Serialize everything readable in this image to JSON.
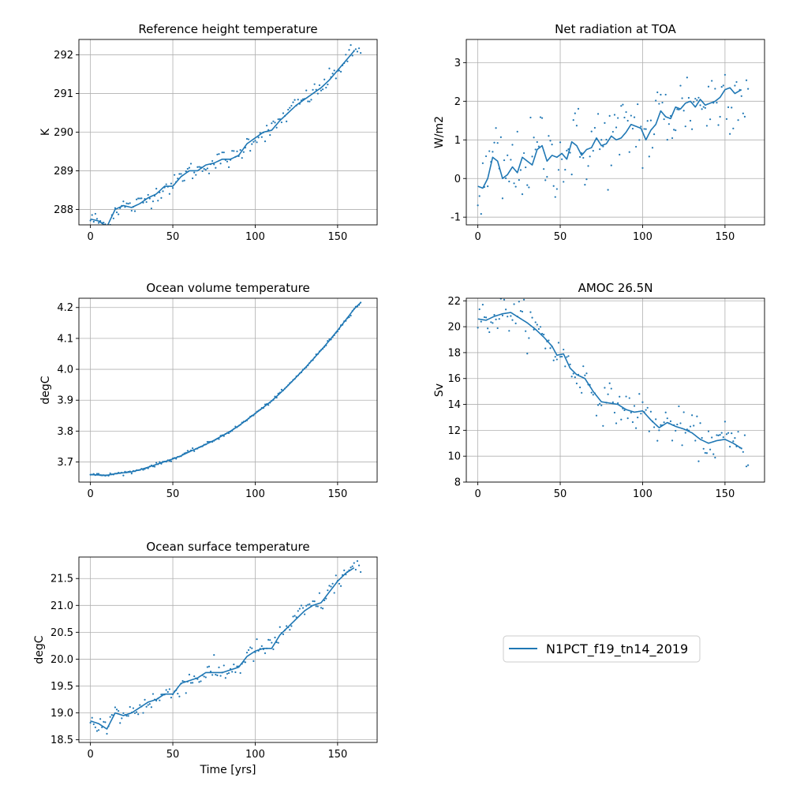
{
  "figure": {
    "legend": {
      "label": "N1PCT_f19_tn14_2019",
      "color": "#1f77b4",
      "placement": "center"
    },
    "xlabel": "Time [yrs]",
    "xlim": [
      -7,
      174
    ],
    "xticks": [
      0,
      50,
      100,
      150
    ],
    "grid": true
  },
  "chart_data": [
    {
      "type": "line",
      "title": "Reference height temperature",
      "ylabel": "K",
      "ylim": [
        287.6,
        292.4
      ],
      "yticks": [
        288,
        289,
        290,
        291,
        292
      ],
      "series": [
        {
          "smoothed": [
            [
              0,
              287.75
            ],
            [
              5,
              287.7
            ],
            [
              10,
              287.55
            ],
            [
              15,
              288.0
            ],
            [
              20,
              288.1
            ],
            [
              25,
              288.05
            ],
            [
              30,
              288.15
            ],
            [
              35,
              288.3
            ],
            [
              40,
              288.4
            ],
            [
              45,
              288.6
            ],
            [
              50,
              288.6
            ],
            [
              55,
              288.85
            ],
            [
              60,
              289.0
            ],
            [
              65,
              289.0
            ],
            [
              70,
              289.15
            ],
            [
              75,
              289.2
            ],
            [
              80,
              289.3
            ],
            [
              85,
              289.3
            ],
            [
              90,
              289.4
            ],
            [
              95,
              289.7
            ],
            [
              100,
              289.85
            ],
            [
              105,
              290.0
            ],
            [
              110,
              290.05
            ],
            [
              115,
              290.3
            ],
            [
              120,
              290.5
            ],
            [
              125,
              290.7
            ],
            [
              130,
              290.85
            ],
            [
              135,
              291.0
            ],
            [
              140,
              291.15
            ],
            [
              145,
              291.35
            ],
            [
              150,
              291.6
            ],
            [
              155,
              291.85
            ],
            [
              160,
              292.1
            ]
          ],
          "noise": 0.12
        }
      ]
    },
    {
      "type": "line",
      "title": "Net radiation at TOA",
      "ylabel": "W/m2",
      "ylim": [
        -1.2,
        3.6
      ],
      "yticks": [
        -1,
        0,
        1,
        2,
        3
      ],
      "series": [
        {
          "smoothed": [
            [
              0,
              -0.2
            ],
            [
              3,
              -0.25
            ],
            [
              6,
              0.0
            ],
            [
              9,
              0.55
            ],
            [
              12,
              0.45
            ],
            [
              15,
              0.0
            ],
            [
              18,
              0.1
            ],
            [
              21,
              0.3
            ],
            [
              24,
              0.15
            ],
            [
              27,
              0.55
            ],
            [
              30,
              0.45
            ],
            [
              33,
              0.35
            ],
            [
              36,
              0.75
            ],
            [
              39,
              0.85
            ],
            [
              42,
              0.45
            ],
            [
              45,
              0.6
            ],
            [
              48,
              0.55
            ],
            [
              51,
              0.65
            ],
            [
              54,
              0.5
            ],
            [
              57,
              0.95
            ],
            [
              60,
              0.85
            ],
            [
              63,
              0.6
            ],
            [
              66,
              0.75
            ],
            [
              69,
              0.8
            ],
            [
              72,
              1.05
            ],
            [
              75,
              0.85
            ],
            [
              78,
              0.9
            ],
            [
              81,
              1.1
            ],
            [
              84,
              1.0
            ],
            [
              87,
              1.05
            ],
            [
              90,
              1.2
            ],
            [
              93,
              1.4
            ],
            [
              96,
              1.35
            ],
            [
              99,
              1.3
            ],
            [
              102,
              1.0
            ],
            [
              105,
              1.25
            ],
            [
              108,
              1.4
            ],
            [
              111,
              1.75
            ],
            [
              114,
              1.6
            ],
            [
              117,
              1.55
            ],
            [
              120,
              1.85
            ],
            [
              123,
              1.8
            ],
            [
              126,
              1.95
            ],
            [
              129,
              2.0
            ],
            [
              132,
              1.85
            ],
            [
              135,
              2.05
            ],
            [
              138,
              1.9
            ],
            [
              141,
              1.95
            ],
            [
              144,
              2.0
            ],
            [
              147,
              2.1
            ],
            [
              150,
              2.3
            ],
            [
              153,
              2.35
            ],
            [
              156,
              2.2
            ],
            [
              160,
              2.3
            ]
          ],
          "noise": 0.55
        }
      ]
    },
    {
      "type": "line",
      "title": "Ocean volume temperature",
      "ylabel": "degC",
      "ylim": [
        3.635,
        4.23
      ],
      "yticks": [
        3.7,
        3.8,
        3.9,
        4.0,
        4.1,
        4.2
      ],
      "series": [
        {
          "smoothed": [
            [
              0,
              3.659
            ],
            [
              5,
              3.658
            ],
            [
              10,
              3.657
            ],
            [
              15,
              3.662
            ],
            [
              20,
              3.665
            ],
            [
              25,
              3.668
            ],
            [
              30,
              3.675
            ],
            [
              35,
              3.683
            ],
            [
              40,
              3.692
            ],
            [
              45,
              3.701
            ],
            [
              50,
              3.71
            ],
            [
              55,
              3.72
            ],
            [
              60,
              3.733
            ],
            [
              65,
              3.745
            ],
            [
              70,
              3.757
            ],
            [
              75,
              3.77
            ],
            [
              80,
              3.785
            ],
            [
              85,
              3.8
            ],
            [
              90,
              3.817
            ],
            [
              95,
              3.837
            ],
            [
              100,
              3.857
            ],
            [
              105,
              3.877
            ],
            [
              110,
              3.898
            ],
            [
              115,
              3.922
            ],
            [
              120,
              3.948
            ],
            [
              125,
              3.975
            ],
            [
              130,
              4.003
            ],
            [
              135,
              4.032
            ],
            [
              140,
              4.062
            ],
            [
              145,
              4.093
            ],
            [
              150,
              4.126
            ],
            [
              155,
              4.16
            ],
            [
              160,
              4.195
            ],
            [
              164,
              4.216
            ]
          ],
          "noise": 0.0025
        }
      ]
    },
    {
      "type": "line",
      "title": "AMOC 26.5N",
      "ylabel": "Sv",
      "ylim": [
        8.0,
        22.2
      ],
      "yticks": [
        8,
        10,
        12,
        14,
        16,
        18,
        20,
        22
      ],
      "series": [
        {
          "smoothed": [
            [
              0,
              20.6
            ],
            [
              5,
              20.5
            ],
            [
              10,
              20.8
            ],
            [
              15,
              21.0
            ],
            [
              20,
              21.1
            ],
            [
              25,
              20.7
            ],
            [
              30,
              20.3
            ],
            [
              35,
              19.8
            ],
            [
              40,
              19.2
            ],
            [
              45,
              18.5
            ],
            [
              48,
              17.8
            ],
            [
              52,
              17.9
            ],
            [
              56,
              16.8
            ],
            [
              60,
              16.3
            ],
            [
              65,
              16.0
            ],
            [
              70,
              15.0
            ],
            [
              75,
              14.2
            ],
            [
              80,
              14.1
            ],
            [
              85,
              14.0
            ],
            [
              90,
              13.6
            ],
            [
              95,
              13.4
            ],
            [
              100,
              13.5
            ],
            [
              105,
              12.8
            ],
            [
              110,
              12.2
            ],
            [
              115,
              12.6
            ],
            [
              120,
              12.3
            ],
            [
              125,
              12.1
            ],
            [
              130,
              11.8
            ],
            [
              135,
              11.3
            ],
            [
              140,
              11.0
            ],
            [
              145,
              11.2
            ],
            [
              150,
              11.3
            ],
            [
              155,
              11.0
            ],
            [
              160,
              10.6
            ]
          ],
          "noise": 0.7
        }
      ]
    },
    {
      "type": "line",
      "title": "Ocean surface temperature",
      "ylabel": "degC",
      "ylim": [
        18.45,
        21.9
      ],
      "yticks": [
        18.5,
        19.0,
        19.5,
        20.0,
        20.5,
        21.0,
        21.5
      ],
      "series": [
        {
          "smoothed": [
            [
              0,
              18.85
            ],
            [
              5,
              18.8
            ],
            [
              10,
              18.7
            ],
            [
              15,
              19.0
            ],
            [
              20,
              18.95
            ],
            [
              25,
              19.0
            ],
            [
              30,
              19.1
            ],
            [
              35,
              19.2
            ],
            [
              40,
              19.25
            ],
            [
              45,
              19.35
            ],
            [
              50,
              19.35
            ],
            [
              55,
              19.55
            ],
            [
              60,
              19.6
            ],
            [
              65,
              19.65
            ],
            [
              70,
              19.75
            ],
            [
              75,
              19.75
            ],
            [
              80,
              19.75
            ],
            [
              85,
              19.8
            ],
            [
              90,
              19.85
            ],
            [
              95,
              20.05
            ],
            [
              100,
              20.15
            ],
            [
              105,
              20.2
            ],
            [
              110,
              20.2
            ],
            [
              115,
              20.45
            ],
            [
              120,
              20.6
            ],
            [
              125,
              20.75
            ],
            [
              130,
              20.9
            ],
            [
              135,
              21.0
            ],
            [
              140,
              21.05
            ],
            [
              145,
              21.25
            ],
            [
              150,
              21.45
            ],
            [
              155,
              21.6
            ],
            [
              160,
              21.7
            ]
          ],
          "noise": 0.1
        }
      ]
    }
  ]
}
